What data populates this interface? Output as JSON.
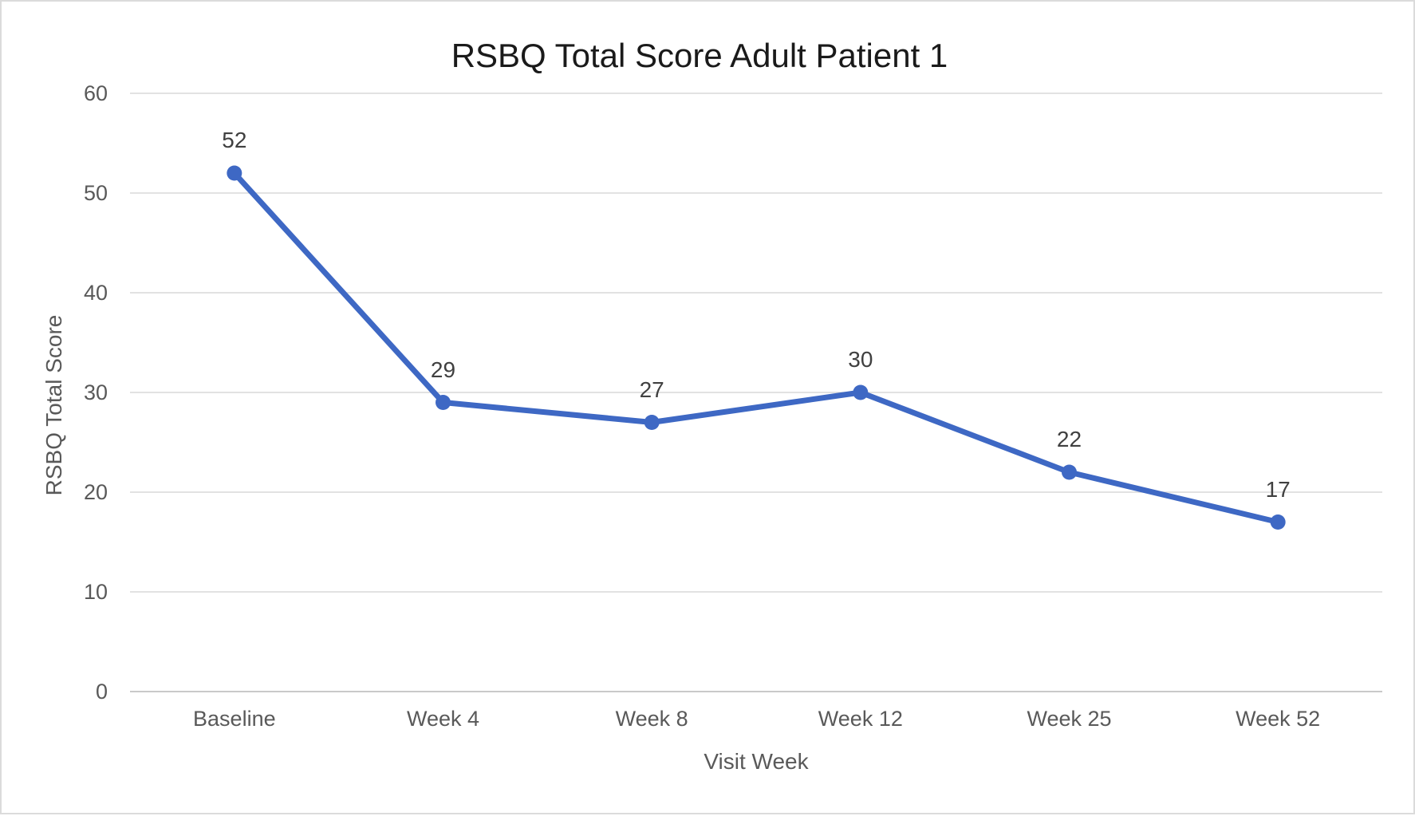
{
  "chart_data": {
    "type": "line",
    "title": "RSBQ Total Score Adult Patient 1",
    "xlabel": "Visit Week",
    "ylabel": "RSBQ Total Score",
    "categories": [
      "Baseline",
      "Week 4",
      "Week 8",
      "Week 12",
      "Week 25",
      "Week 52"
    ],
    "series": [
      {
        "name": "RSBQ Total Score",
        "values": [
          52,
          29,
          27,
          30,
          22,
          17
        ]
      }
    ],
    "data_labels": [
      52,
      29,
      27,
      30,
      22,
      17
    ],
    "data_labels_position": "above",
    "y_ticks": [
      0,
      10,
      20,
      30,
      40,
      50,
      60
    ],
    "ylim": [
      0,
      60
    ],
    "grid": "horizontal",
    "legend": "none",
    "marker": "circle"
  },
  "colors": {
    "series_line": "#3E68C4",
    "gridline": "#D9D9D9",
    "axis_line": "#C9C9C9",
    "tick_text": "#595959",
    "axis_title_text": "#595959",
    "data_label_text": "#404040",
    "title_text": "#1A1A1A",
    "background": "#FFFFFF"
  }
}
